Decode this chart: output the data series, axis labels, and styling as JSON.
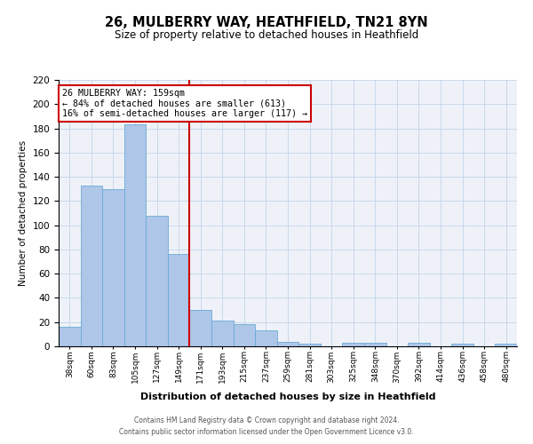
{
  "title": "26, MULBERRY WAY, HEATHFIELD, TN21 8YN",
  "subtitle": "Size of property relative to detached houses in Heathfield",
  "xlabel": "Distribution of detached houses by size in Heathfield",
  "ylabel": "Number of detached properties",
  "bins": [
    "38sqm",
    "60sqm",
    "83sqm",
    "105sqm",
    "127sqm",
    "149sqm",
    "171sqm",
    "193sqm",
    "215sqm",
    "237sqm",
    "259sqm",
    "281sqm",
    "303sqm",
    "325sqm",
    "348sqm",
    "370sqm",
    "392sqm",
    "414sqm",
    "436sqm",
    "458sqm",
    "480sqm"
  ],
  "values": [
    16,
    133,
    130,
    183,
    108,
    76,
    30,
    21,
    18,
    13,
    4,
    2,
    0,
    3,
    3,
    0,
    3,
    0,
    2,
    0,
    2
  ],
  "bar_color": "#aec6e8",
  "bar_edge_color": "#6aaad4",
  "property_label": "26 MULBERRY WAY: 159sqm",
  "annotation_line1": "← 84% of detached houses are smaller (613)",
  "annotation_line2": "16% of semi-detached houses are larger (117) →",
  "vline_color": "#cc0000",
  "annotation_box_color": "#ffffff",
  "annotation_box_edge": "#cc0000",
  "ylim": [
    0,
    220
  ],
  "yticks": [
    0,
    20,
    40,
    60,
    80,
    100,
    120,
    140,
    160,
    180,
    200,
    220
  ],
  "grid_color": "#c8d8ea",
  "bg_color": "#eef2f8",
  "footer_line1": "Contains HM Land Registry data © Crown copyright and database right 2024.",
  "footer_line2": "Contains public sector information licensed under the Open Government Licence v3.0."
}
